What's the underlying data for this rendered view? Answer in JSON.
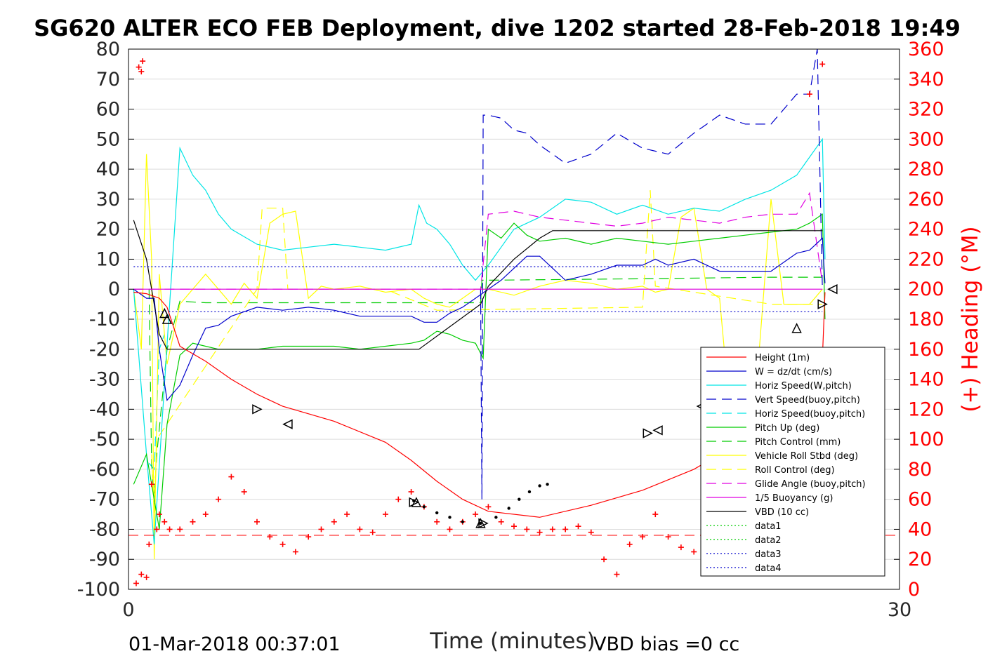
{
  "chart_data": {
    "type": "line",
    "title": "SG620 ALTER ECO FEB Deployment, dive 1202 started 28-Feb-2018 19:49",
    "xlabel": "Time (minutes)",
    "ylabel_right": "(+) Heading (°M)",
    "xlim": [
      0,
      30
    ],
    "ylim_left": [
      -100,
      80
    ],
    "ylim_right": [
      0,
      360
    ],
    "x_ticks": [
      "0",
      "30"
    ],
    "y_ticks_left": [
      "80",
      "70",
      "60",
      "50",
      "40",
      "30",
      "20",
      "10",
      "0",
      "-10",
      "-20",
      "-30",
      "-40",
      "-50",
      "-60",
      "-70",
      "-80",
      "-90",
      "-100"
    ],
    "y_ticks_right": [
      "360",
      "340",
      "320",
      "300",
      "280",
      "260",
      "240",
      "220",
      "200",
      "180",
      "160",
      "140",
      "120",
      "100",
      "80",
      "60",
      "40",
      "20",
      "0"
    ],
    "grid": true,
    "legend_position": "bottom-right",
    "footer_left": "01-Mar-2018 00:37:01",
    "footer_right": "VBD bias =0 cc",
    "colors": {
      "right_axis": "#ff0000",
      "height": "#ff0000",
      "w": "#0000cc",
      "horiz": "#00e5e5",
      "pitch": "#00cc00",
      "roll": "#ffff00",
      "glide": "#e100e1",
      "vbd": "#000000"
    },
    "series": [
      {
        "name": "Height (1m)",
        "x": [
          0.2,
          0.7,
          1.2,
          1.5,
          2.0,
          3.0,
          4.0,
          5.0,
          6.0,
          8.0,
          10.0,
          11.0,
          12.0,
          13.0,
          14.0,
          16.0,
          18.0,
          20.0,
          22.0,
          24.0,
          25.0,
          26.0,
          27.0,
          27.1
        ],
        "y": [
          -1,
          -1.5,
          -3,
          -6,
          -19,
          -24,
          -30,
          -35,
          -39,
          -44,
          -51,
          -57,
          -64,
          -70,
          -74,
          -76,
          -72,
          -67,
          -60,
          -50,
          -44,
          -38,
          -23,
          -1
        ]
      },
      {
        "name": "W = dz/dt (cm/s)",
        "x": [
          0.2,
          0.7,
          1.0,
          1.2,
          1.5,
          2.0,
          2.5,
          3.0,
          3.5,
          4.0,
          5.0,
          6.0,
          7.0,
          8.0,
          9.0,
          10.0,
          11.0,
          11.5,
          12.0,
          12.5,
          13.0,
          13.5,
          14.0,
          14.5,
          15.0,
          15.5,
          16.0,
          17.0,
          18.0,
          19.0,
          20.0,
          20.5,
          21.0,
          22.0,
          23.0,
          24.0,
          25.0,
          26.0,
          26.5,
          27.0,
          27.1
        ],
        "y": [
          0,
          -3,
          -3,
          -20,
          -37,
          -32,
          -22,
          -13,
          -12,
          -9,
          -6,
          -7,
          -6,
          -7,
          -9,
          -9,
          -9,
          -11,
          -11,
          -8,
          -6,
          -3,
          0,
          3,
          7,
          11,
          11,
          3,
          5,
          8,
          8,
          10,
          8,
          10,
          6,
          6,
          6,
          12,
          13,
          17,
          2
        ]
      },
      {
        "name": "Horiz Speed(W,pitch)",
        "x": [
          0.2,
          0.7,
          1.0,
          1.3,
          1.6,
          2.0,
          2.5,
          3.0,
          3.5,
          4.0,
          5.0,
          6.0,
          7.0,
          8.0,
          9.0,
          10.0,
          11.0,
          11.3,
          11.6,
          12.0,
          12.5,
          13.0,
          13.5,
          14.0,
          14.5,
          15.0,
          16.0,
          17.0,
          18.0,
          19.0,
          20.0,
          21.0,
          22.0,
          23.0,
          24.0,
          25.0,
          26.0,
          26.5,
          27.0,
          27.1
        ],
        "y": [
          0,
          -55,
          -85,
          -45,
          -5,
          47,
          38,
          33,
          25,
          20,
          15,
          13,
          14,
          15,
          14,
          13,
          15,
          28,
          22,
          20,
          15,
          8,
          3,
          8,
          14,
          20,
          24,
          30,
          29,
          25,
          28,
          25,
          27,
          26,
          30,
          33,
          38,
          44,
          50,
          10
        ]
      },
      {
        "name": "Vert Speed(buoy,pitch)",
        "x": [
          13.7,
          13.75,
          13.8,
          14.0,
          14.5,
          15.0,
          15.5,
          16.0,
          16.5,
          17.0,
          18.0,
          19.0,
          20.0,
          21.0,
          22.0,
          23.0,
          24.0,
          25.0,
          25.5,
          26.0,
          26.5,
          26.8,
          27.0
        ],
        "y": [
          0,
          -70,
          58,
          58,
          57,
          53,
          52,
          48,
          45,
          42,
          45,
          52,
          47,
          45,
          52,
          58,
          55,
          55,
          60,
          65,
          65,
          80,
          0
        ]
      },
      {
        "name": "Horiz Speed(buoy,pitch)",
        "x": [
          0.8,
          1.0,
          1.2,
          1.4
        ],
        "y": [
          -58,
          -60,
          -20,
          -15
        ]
      },
      {
        "name": "Pitch Up (deg)",
        "x": [
          0.2,
          0.7,
          1.0,
          1.2,
          1.5,
          2.0,
          2.5,
          3.0,
          3.5,
          4.0,
          5.0,
          6.0,
          7.0,
          8.0,
          9.0,
          10.0,
          11.0,
          11.5,
          12.0,
          12.5,
          13.0,
          13.5,
          13.8,
          14.0,
          14.5,
          15.0,
          15.5,
          16.0,
          17.0,
          18.0,
          19.0,
          20.0,
          21.0,
          22.0,
          23.0,
          24.0,
          25.0,
          26.0,
          26.5,
          27.0,
          27.1
        ],
        "y": [
          -65,
          -55,
          -70,
          -80,
          -45,
          -22,
          -18,
          -19,
          -20,
          -20,
          -20,
          -19,
          -19,
          -19,
          -20,
          -19,
          -18,
          -17,
          -14,
          -15,
          -17,
          -18,
          -23,
          20,
          17,
          22,
          18,
          16,
          17,
          15,
          17,
          16,
          15,
          16,
          17,
          18,
          19,
          20,
          22,
          25,
          -10
        ]
      },
      {
        "name": "Pitch Control (mm)",
        "x": [
          0.2,
          0.8,
          0.9,
          1.0,
          1.1,
          1.5,
          2.0,
          3.0,
          11.0,
          13.7,
          13.75,
          14.0,
          20.0,
          25.0,
          27.0
        ],
        "y": [
          0,
          0,
          -58,
          -70,
          -55,
          -20,
          -4,
          -4.5,
          -4.5,
          -4.5,
          3,
          3,
          3.5,
          4,
          4
        ]
      },
      {
        "name": "Vehicle Roll Stbd (deg)",
        "x": [
          0.2,
          0.5,
          0.7,
          0.9,
          1.0,
          1.2,
          1.5,
          2.0,
          2.5,
          3.0,
          3.5,
          4.0,
          4.5,
          5.0,
          5.5,
          6.0,
          6.5,
          7.0,
          7.5,
          8.0,
          9.0,
          10.0,
          11.0,
          11.5,
          12.0,
          12.5,
          13.0,
          13.5,
          14.0,
          15.0,
          16.0,
          17.0,
          18.0,
          19.0,
          20.0,
          20.5,
          21.0,
          21.5,
          22.0,
          22.5,
          23.0,
          23.5,
          24.0,
          24.5,
          25.0,
          25.5,
          26.0,
          26.5,
          27.0
        ],
        "y": [
          0,
          -20,
          45,
          10,
          -90,
          5,
          -25,
          -5,
          0,
          5,
          0,
          -5,
          2,
          -3,
          22,
          25,
          26,
          -3,
          1,
          0,
          1,
          -1,
          0,
          -3,
          -5,
          -6,
          -3,
          0,
          0,
          -2,
          1,
          3,
          2,
          0,
          1,
          -1,
          0,
          24,
          27,
          0,
          -3,
          -50,
          -30,
          -25,
          30,
          -5,
          -5,
          -5,
          0
        ]
      },
      {
        "name": "Roll Control (deg)",
        "x": [
          0.9,
          1.0,
          1.1,
          5.0,
          5.2,
          6.0,
          6.2,
          10.0,
          12.0,
          20.0,
          20.3,
          20.5,
          25.0,
          27.0
        ],
        "y": [
          -55,
          -75,
          -50,
          0,
          27,
          27,
          0,
          0,
          -7,
          -6,
          33,
          1,
          -5,
          -5
        ]
      },
      {
        "name": "Glide Angle (buoy,pitch)",
        "x": [
          0.2,
          13.7,
          14.0,
          15.0,
          16.0,
          17.0,
          18.0,
          19.0,
          20.0,
          21.0,
          22.0,
          23.0,
          24.0,
          25.0,
          26.0,
          26.5,
          27.0
        ],
        "y": [
          0,
          0,
          25,
          26,
          24,
          23,
          22,
          21,
          22,
          24,
          23,
          22,
          24,
          25,
          25,
          32,
          2
        ]
      },
      {
        "name": "1/5 Buoyancy (g)",
        "x": [
          0.2,
          27.0
        ],
        "y": [
          0,
          0
        ]
      },
      {
        "name": "VBD (10 cc)",
        "x": [
          0.2,
          0.7,
          1.2,
          1.5,
          2.0,
          3.0,
          11.0,
          11.3,
          13.7,
          14.0,
          15.0,
          16.0,
          16.5,
          17.0,
          20.0,
          25.0,
          27.0
        ],
        "y": [
          23,
          10,
          -15,
          -20,
          -20,
          -20,
          -20,
          -20,
          -5,
          1,
          10,
          17,
          19.5,
          19.5,
          19.5,
          19.5,
          19.5
        ]
      },
      {
        "name": "data1",
        "x": [],
        "y": []
      },
      {
        "name": "data2",
        "x": [],
        "y": []
      },
      {
        "name": "data3",
        "x": [
          0.2,
          27.0
        ],
        "y": [
          7.5,
          7.5
        ]
      },
      {
        "name": "data4",
        "x": [
          0.2,
          27.0
        ],
        "y": [
          -7.5,
          -7.5
        ]
      }
    ],
    "heading_series": {
      "axis": "right",
      "x": [
        0.3,
        0.5,
        0.7,
        0.8,
        0.9,
        1.1,
        1.2,
        1.4,
        1.6,
        2.0,
        2.5,
        3.0,
        3.5,
        4.0,
        4.5,
        5.0,
        5.5,
        6.0,
        6.5,
        7.0,
        7.5,
        8.0,
        8.5,
        9.0,
        9.5,
        10.0,
        10.5,
        11.0,
        11.5,
        12.0,
        12.5,
        13.0,
        13.5,
        14.0,
        14.5,
        15.0,
        15.5,
        16.0,
        16.5,
        17.0,
        17.5,
        18.0,
        18.5,
        19.0,
        19.5,
        20.0,
        20.5,
        21.0,
        21.5,
        22.0,
        22.5,
        23.0,
        23.5,
        24.0,
        24.5,
        25.0,
        25.5,
        26.0,
        26.5,
        27.0
      ],
      "y": [
        4,
        10,
        8,
        30,
        70,
        40,
        50,
        45,
        40,
        40,
        45,
        50,
        60,
        75,
        65,
        45,
        35,
        30,
        25,
        35,
        40,
        45,
        50,
        40,
        38,
        50,
        60,
        65,
        55,
        45,
        40,
        45,
        50,
        55,
        45,
        42,
        40,
        38,
        40,
        40,
        42,
        38,
        20,
        10,
        30,
        35,
        50,
        35,
        28,
        25,
        20,
        25,
        20,
        30,
        15,
        25,
        30,
        40,
        330,
        350
      ],
      "extra_points": [
        [
          0.4,
          348
        ],
        [
          0.5,
          345
        ],
        [
          0.55,
          352
        ]
      ]
    },
    "heading_reference": 36,
    "markers": {
      "height_triangles": [
        [
          1.4,
          -8,
          "up"
        ],
        [
          1.5,
          -10,
          "up"
        ],
        [
          5.0,
          -40,
          "right"
        ],
        [
          6.2,
          -45,
          "left"
        ],
        [
          11.1,
          -71,
          "right"
        ],
        [
          11.2,
          -71,
          "up"
        ],
        [
          13.7,
          -78,
          "up"
        ],
        [
          13.8,
          -78,
          "right"
        ],
        [
          20.2,
          -48,
          "right"
        ],
        [
          20.6,
          -47,
          "left"
        ],
        [
          22.3,
          -39,
          "left"
        ],
        [
          26.0,
          -13,
          "up"
        ],
        [
          27.0,
          -5,
          "right"
        ],
        [
          27.4,
          0,
          "left"
        ]
      ],
      "dots_x": [
        11.1,
        11.5,
        12.0,
        12.5,
        13.0,
        13.7,
        14.3,
        14.8,
        15.2,
        15.6,
        16.0,
        16.3
      ],
      "dots_y": [
        -70.5,
        -72.5,
        -74.5,
        -76,
        -77.5,
        -78,
        -76,
        -73,
        -70,
        -67.5,
        -65.5,
        -65
      ]
    }
  }
}
